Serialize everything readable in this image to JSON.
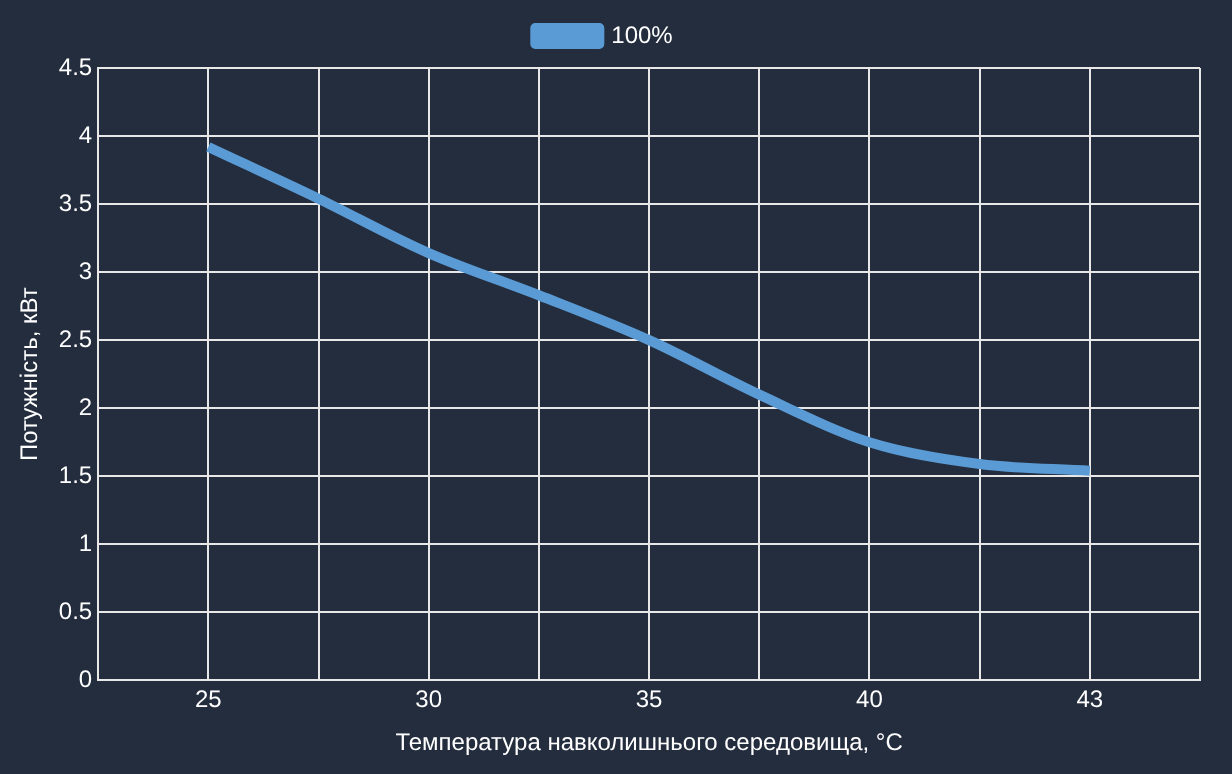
{
  "chart_data": {
    "type": "line",
    "xlabel": "Температура навколишнього середовища, °C",
    "ylabel": "Потужність, кВт",
    "categories": [
      "25",
      null,
      "30",
      null,
      "35",
      null,
      "40",
      null,
      "43"
    ],
    "series": [
      {
        "name": "100%",
        "color": "#5b9bd5",
        "values": [
          3.92,
          3.54,
          3.14,
          2.83,
          2.5,
          2.1,
          1.75,
          1.59,
          1.54
        ]
      }
    ],
    "ylim": [
      0,
      4.5
    ],
    "yticks": [
      0,
      0.5,
      1,
      1.5,
      2,
      2.5,
      3,
      3.5,
      4,
      4.5
    ],
    "grid": true,
    "legend": "top",
    "marker": "none"
  }
}
